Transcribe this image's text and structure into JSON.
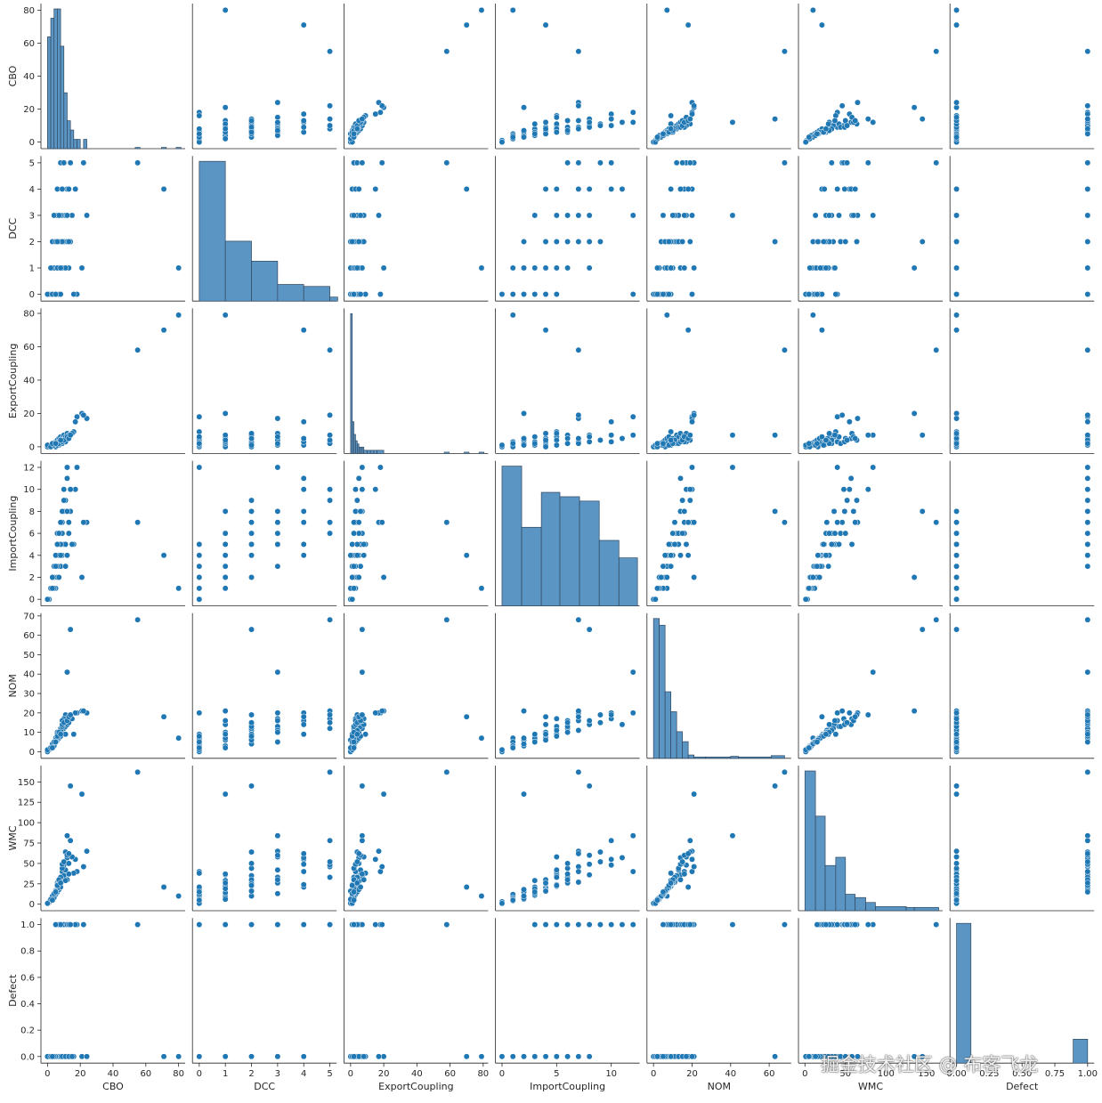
{
  "colors": {
    "point": "#1f77b4",
    "hist": "#5b95c4",
    "axis": "#262626"
  },
  "watermark": "掘金技术社区 @ 布客飞龙",
  "chart_data": {
    "type": "scatter",
    "title": "",
    "variables": [
      "CBO",
      "DCC",
      "ExportCoupling",
      "ImportCoupling",
      "NOM",
      "WMC",
      "Defect"
    ],
    "axes": {
      "CBO": {
        "range": [
          -4,
          84
        ],
        "ticks": [
          0,
          20,
          40,
          60,
          80
        ],
        "tick_labels": [
          "0",
          "20",
          "40",
          "60",
          "80"
        ]
      },
      "DCC": {
        "range": [
          -0.26,
          5.26
        ],
        "ticks": [
          0,
          1,
          2,
          3,
          4,
          5
        ],
        "tick_labels": [
          "0",
          "1",
          "2",
          "3",
          "4",
          "5"
        ]
      },
      "ExportCoupling": {
        "range": [
          -4,
          83
        ],
        "ticks": [
          0,
          20,
          40,
          60,
          80
        ],
        "tick_labels": [
          "0",
          "20",
          "40",
          "60",
          "80"
        ]
      },
      "ImportCoupling": {
        "range": [
          -0.6,
          12.6
        ],
        "ticks": [
          0,
          2,
          4,
          6,
          8,
          10,
          12
        ],
        "x_ticks": [
          0,
          5,
          10
        ],
        "tick_labels": [
          "0",
          "2",
          "4",
          "6",
          "8",
          "10",
          "12"
        ]
      },
      "NOM": {
        "range": [
          -3.4,
          71.4
        ],
        "ticks": [
          0,
          10,
          20,
          30,
          40,
          50,
          60,
          70
        ],
        "x_ticks": [
          0,
          20,
          40,
          60
        ],
        "tick_labels": [
          "0",
          "10",
          "20",
          "30",
          "40",
          "50",
          "60",
          "70"
        ]
      },
      "WMC": {
        "range": [
          -8,
          170
        ],
        "ticks": [
          0,
          25,
          50,
          75,
          100,
          125,
          150
        ],
        "x_ticks": [
          0,
          50,
          100,
          150
        ],
        "tick_labels": [
          "0",
          "25",
          "50",
          "75",
          "100",
          "125",
          "150"
        ]
      },
      "Defect": {
        "range": [
          -0.05,
          1.05
        ],
        "ticks": [
          0,
          0.2,
          0.4,
          0.6,
          0.8,
          1.0
        ],
        "x_ticks": [
          0,
          0.25,
          0.5,
          0.75,
          1.0
        ],
        "tick_labels": [
          "0.0",
          "0.2",
          "0.4",
          "0.6",
          "0.8",
          "1.0"
        ],
        "x_tick_labels": [
          "0.00",
          "0.25",
          "0.50",
          "0.75",
          "1.00"
        ]
      }
    },
    "observations": {
      "columns": [
        "CBO",
        "DCC",
        "ExportCoupling",
        "ImportCoupling",
        "NOM",
        "WMC",
        "Defect"
      ],
      "rows": [
        [
          80,
          1,
          79,
          1,
          7,
          10,
          0
        ],
        [
          71,
          4,
          70,
          4,
          18,
          21,
          0
        ],
        [
          55,
          5,
          58,
          7,
          68,
          162,
          1
        ],
        [
          21,
          1,
          20,
          2,
          21,
          135,
          0
        ],
        [
          18,
          0,
          18,
          12,
          20,
          40,
          1
        ],
        [
          24,
          3,
          17,
          7,
          20,
          65,
          0
        ],
        [
          22,
          5,
          19,
          7,
          21,
          46,
          1
        ],
        [
          17,
          4,
          15,
          10,
          20,
          55,
          1
        ],
        [
          14,
          2,
          7,
          8,
          63,
          145,
          0
        ],
        [
          16,
          0,
          9,
          5,
          9,
          38,
          0
        ],
        [
          12,
          3,
          7,
          12,
          41,
          84,
          1
        ],
        [
          12,
          4,
          5,
          11,
          14,
          57,
          1
        ],
        [
          11,
          2,
          4,
          9,
          19,
          64,
          1
        ],
        [
          10,
          5,
          3,
          10,
          17,
          48,
          1
        ],
        [
          10,
          1,
          6,
          8,
          14,
          36,
          1
        ],
        [
          9,
          3,
          5,
          6,
          12,
          31,
          1
        ],
        [
          9,
          4,
          3,
          7,
          16,
          40,
          1
        ],
        [
          8,
          2,
          2,
          7,
          11,
          27,
          1
        ],
        [
          8,
          5,
          2,
          6,
          12,
          33,
          1
        ],
        [
          7,
          1,
          1,
          5,
          9,
          22,
          1
        ],
        [
          7,
          0,
          3,
          4,
          8,
          20,
          1
        ],
        [
          6,
          3,
          2,
          6,
          10,
          26,
          1
        ],
        [
          6,
          4,
          1,
          5,
          9,
          24,
          1
        ],
        [
          5,
          2,
          1,
          4,
          7,
          17,
          1
        ],
        [
          5,
          1,
          2,
          3,
          6,
          14,
          0
        ],
        [
          4,
          0,
          1,
          3,
          5,
          11,
          0
        ],
        [
          4,
          0,
          2,
          2,
          4,
          9,
          0
        ],
        [
          3,
          0,
          1,
          2,
          3,
          6,
          0
        ],
        [
          3,
          1,
          1,
          2,
          3,
          7,
          0
        ],
        [
          2,
          0,
          0,
          1,
          2,
          4,
          0
        ],
        [
          2,
          0,
          1,
          1,
          2,
          5,
          0
        ],
        [
          1,
          0,
          0,
          0,
          1,
          2,
          0
        ],
        [
          1,
          0,
          0,
          0,
          1,
          3,
          0
        ],
        [
          0,
          0,
          0,
          0,
          0,
          1,
          0
        ],
        [
          0,
          0,
          1,
          0,
          1,
          1,
          0
        ],
        [
          5,
          0,
          3,
          1,
          5,
          12,
          0
        ],
        [
          6,
          0,
          4,
          2,
          6,
          15,
          0
        ],
        [
          7,
          0,
          5,
          2,
          7,
          18,
          0
        ],
        [
          8,
          0,
          6,
          3,
          8,
          21,
          0
        ],
        [
          9,
          1,
          5,
          4,
          10,
          28,
          0
        ],
        [
          10,
          2,
          7,
          5,
          12,
          35,
          0
        ],
        [
          11,
          3,
          6,
          5,
          13,
          42,
          0
        ],
        [
          12,
          2,
          8,
          4,
          14,
          30,
          0
        ],
        [
          13,
          1,
          7,
          6,
          16,
          37,
          0
        ],
        [
          4,
          1,
          2,
          1,
          3,
          8,
          0
        ],
        [
          3,
          2,
          1,
          2,
          4,
          10,
          0
        ],
        [
          2,
          1,
          0,
          1,
          2,
          6,
          0
        ],
        [
          6,
          1,
          2,
          3,
          7,
          19,
          0
        ],
        [
          7,
          2,
          3,
          4,
          9,
          25,
          0
        ],
        [
          8,
          3,
          4,
          5,
          11,
          33,
          0
        ],
        [
          9,
          2,
          2,
          6,
          13,
          44,
          0
        ],
        [
          11,
          1,
          3,
          3,
          9,
          29,
          0
        ],
        [
          13,
          2,
          5,
          6,
          15,
          50,
          0
        ],
        [
          15,
          3,
          8,
          5,
          17,
          58,
          0
        ],
        [
          5,
          2,
          0,
          4,
          6,
          16,
          0
        ],
        [
          4,
          3,
          1,
          3,
          5,
          13,
          0
        ],
        [
          3,
          0,
          2,
          1,
          2,
          5,
          0
        ],
        [
          6,
          2,
          1,
          5,
          8,
          23,
          1
        ],
        [
          7,
          3,
          2,
          6,
          10,
          30,
          1
        ],
        [
          9,
          4,
          3,
          8,
          14,
          49,
          1
        ],
        [
          10,
          5,
          4,
          9,
          15,
          52,
          1
        ],
        [
          12,
          3,
          6,
          8,
          16,
          60,
          1
        ],
        [
          13,
          4,
          5,
          7,
          18,
          62,
          1
        ],
        [
          14,
          5,
          7,
          10,
          19,
          78,
          1
        ],
        [
          8,
          1,
          4,
          4,
          9,
          26,
          1
        ],
        [
          5,
          0,
          2,
          3,
          5,
          15,
          1
        ]
      ]
    },
    "histograms": {
      "CBO": {
        "bin_edges": [
          0,
          2,
          4,
          6,
          8,
          10,
          12,
          14,
          16,
          18,
          20,
          22,
          24
        ],
        "counts": [
          12,
          14,
          15,
          15,
          11,
          6,
          3,
          2,
          1,
          1,
          0,
          1
        ],
        "outliers": [
          55,
          71,
          80
        ]
      },
      "DCC": {
        "bin_edges": [
          0,
          1,
          2,
          3,
          4,
          5,
          5.3
        ],
        "counts": [
          21,
          9,
          6,
          2.5,
          2.2,
          0.6
        ]
      },
      "ExportCoupling": {
        "bin_edges": [
          0,
          1,
          2,
          3,
          4,
          5,
          6,
          7,
          8,
          10,
          12,
          14,
          16,
          20
        ],
        "counts": [
          44,
          10,
          6,
          4,
          3,
          2,
          2,
          2,
          1,
          1,
          1,
          1,
          1
        ],
        "outliers": [
          58,
          70,
          79
        ]
      },
      "ImportCoupling": {
        "bin_edges": [
          0,
          1.8,
          3.6,
          5.3,
          7.1,
          8.9,
          10.7,
          12.4
        ],
        "counts": [
          16,
          9,
          13,
          12.5,
          12,
          7.5,
          5.5
        ]
      },
      "NOM": {
        "bin_edges": [
          0,
          3,
          6,
          9,
          12,
          15,
          18,
          21,
          27,
          40,
          44,
          61,
          68
        ],
        "counts": [
          21,
          20,
          10,
          7,
          4,
          2.5,
          0.5,
          0.2,
          0.2,
          0.3,
          0.2,
          0.4
        ]
      },
      "WMC": {
        "bin_edges": [
          0,
          13,
          25,
          38,
          50,
          62,
          75,
          87,
          125,
          135,
          165
        ],
        "counts": [
          17,
          11.5,
          5.5,
          6.5,
          2,
          1.6,
          1,
          0.5,
          0.4,
          0.4
        ]
      },
      "Defect": {
        "bin_edges": [
          0,
          0.11,
          0.89,
          1.0
        ],
        "counts": [
          38,
          0,
          6.5
        ]
      }
    }
  }
}
